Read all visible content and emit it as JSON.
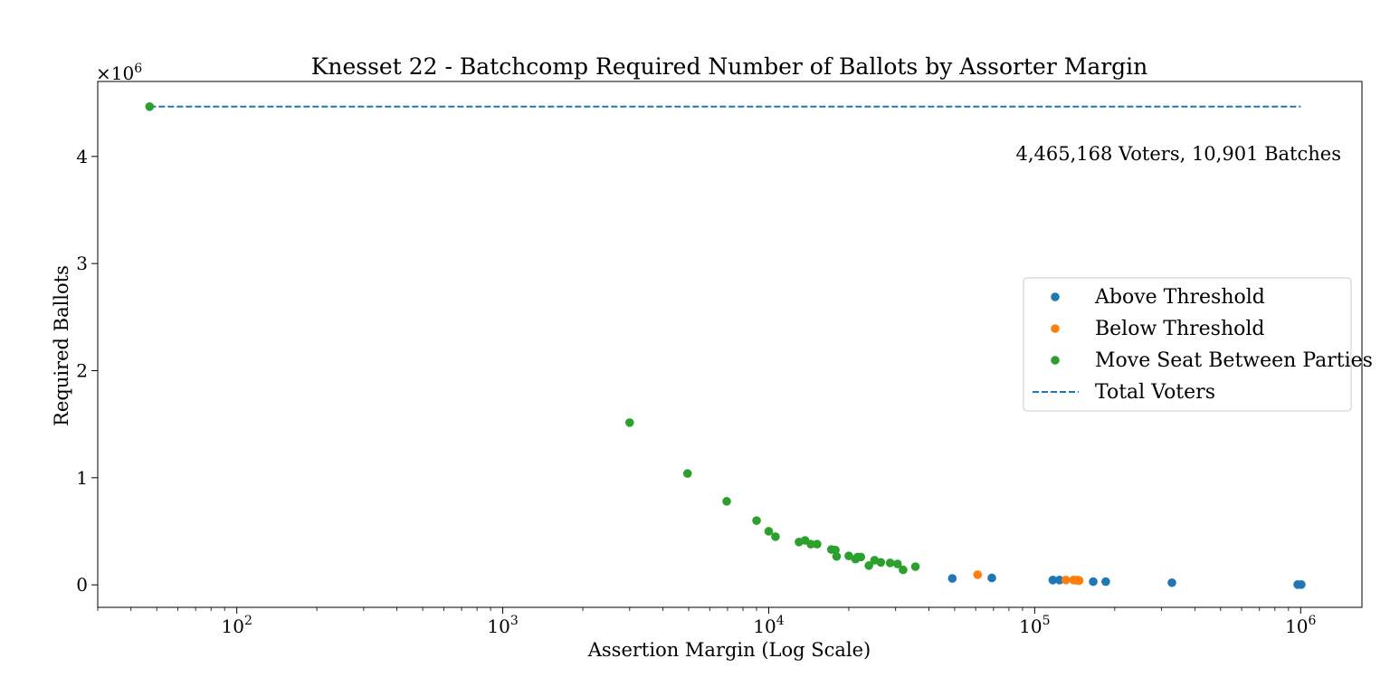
{
  "chart_data": {
    "type": "scatter",
    "title": "Knesset 22 - Batchcomp Required Number of Ballots by Assorter Margin",
    "xlabel": "Assertion Margin (Log Scale)",
    "ylabel": "Required Ballots",
    "x_scale": "log",
    "xlim": [
      30,
      1700000
    ],
    "ylim": [
      -210000,
      4700000
    ],
    "x_ticks": [
      {
        "value": 100,
        "base": "10",
        "exp": "2"
      },
      {
        "value": 1000,
        "base": "10",
        "exp": "3"
      },
      {
        "value": 10000,
        "base": "10",
        "exp": "4"
      },
      {
        "value": 100000,
        "base": "10",
        "exp": "5"
      },
      {
        "value": 1000000,
        "base": "10",
        "exp": "6"
      }
    ],
    "y_ticks": [
      {
        "value": 0,
        "label": "0"
      },
      {
        "value": 1000000,
        "label": "1"
      },
      {
        "value": 2000000,
        "label": "2"
      },
      {
        "value": 3000000,
        "label": "3"
      },
      {
        "value": 4000000,
        "label": "4"
      }
    ],
    "y_offset_label": {
      "base": "×10",
      "exp": "6"
    },
    "annotation": "4,465,168 Voters, 10,901 Batches",
    "grid": false,
    "legend_position": "center-right",
    "reference_line": {
      "name": "Total Voters",
      "y": 4465168,
      "color": "#1f77b4",
      "style": "dashed"
    },
    "series": [
      {
        "name": "Above Threshold",
        "color": "#1f77b4",
        "points": [
          {
            "x": 49000,
            "y": 60000
          },
          {
            "x": 69000,
            "y": 65000
          },
          {
            "x": 117000,
            "y": 45000
          },
          {
            "x": 124000,
            "y": 45000
          },
          {
            "x": 166000,
            "y": 30000
          },
          {
            "x": 185000,
            "y": 30000
          },
          {
            "x": 328000,
            "y": 20000
          },
          {
            "x": 975000,
            "y": 3000
          },
          {
            "x": 1005000,
            "y": 3000
          }
        ]
      },
      {
        "name": "Below Threshold",
        "color": "#ff7f0e",
        "points": [
          {
            "x": 61000,
            "y": 95000
          },
          {
            "x": 131000,
            "y": 45000
          },
          {
            "x": 140000,
            "y": 45000
          },
          {
            "x": 143000,
            "y": 42000
          },
          {
            "x": 145000,
            "y": 45000
          },
          {
            "x": 147000,
            "y": 40000
          }
        ]
      },
      {
        "name": "Move Seat Between Parties",
        "color": "#2ca02c",
        "points": [
          {
            "x": 47,
            "y": 4465000
          },
          {
            "x": 3000,
            "y": 1515000
          },
          {
            "x": 4950,
            "y": 1040000
          },
          {
            "x": 6950,
            "y": 780000
          },
          {
            "x": 9000,
            "y": 600000
          },
          {
            "x": 10000,
            "y": 500000
          },
          {
            "x": 10600,
            "y": 450000
          },
          {
            "x": 13000,
            "y": 400000
          },
          {
            "x": 13700,
            "y": 415000
          },
          {
            "x": 14400,
            "y": 380000
          },
          {
            "x": 15200,
            "y": 380000
          },
          {
            "x": 17200,
            "y": 330000
          },
          {
            "x": 17800,
            "y": 325000
          },
          {
            "x": 18000,
            "y": 265000
          },
          {
            "x": 20000,
            "y": 270000
          },
          {
            "x": 21200,
            "y": 240000
          },
          {
            "x": 21600,
            "y": 260000
          },
          {
            "x": 22200,
            "y": 260000
          },
          {
            "x": 23800,
            "y": 180000
          },
          {
            "x": 25000,
            "y": 230000
          },
          {
            "x": 26400,
            "y": 210000
          },
          {
            "x": 28600,
            "y": 205000
          },
          {
            "x": 30500,
            "y": 195000
          },
          {
            "x": 32000,
            "y": 140000
          },
          {
            "x": 35600,
            "y": 170000
          }
        ]
      }
    ]
  }
}
